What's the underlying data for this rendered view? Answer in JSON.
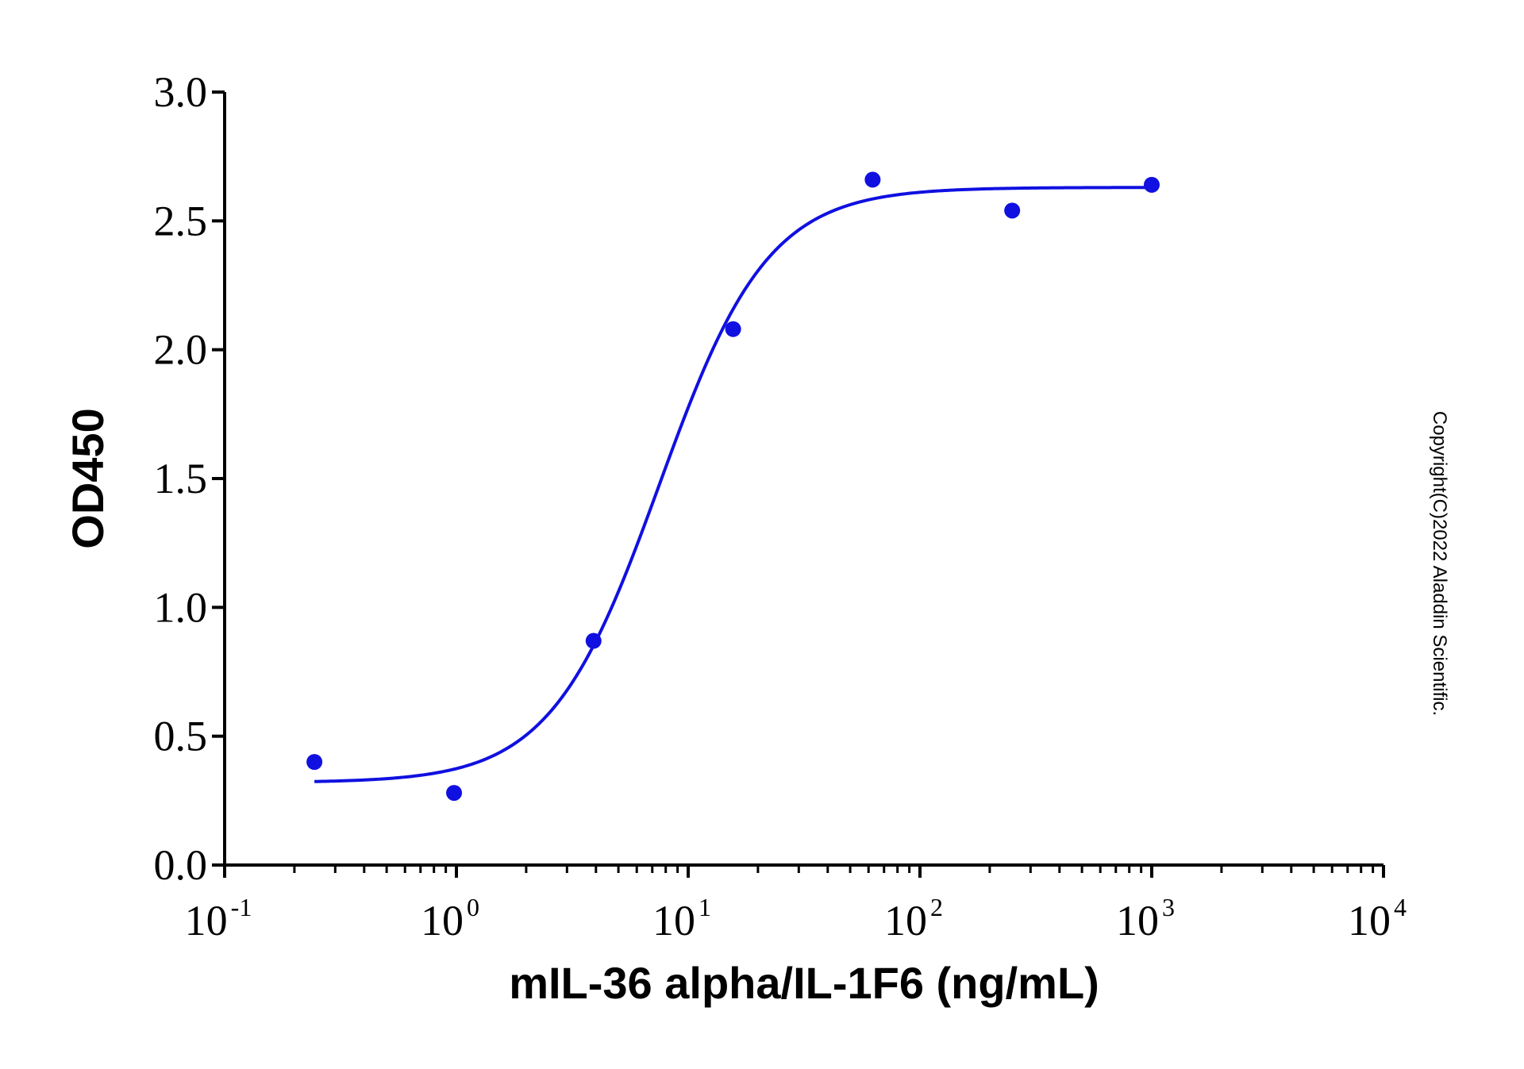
{
  "chart_data": {
    "type": "scatter",
    "xlabel": "mIL-36 alpha/IL-1F6 (ng/mL)",
    "ylabel": "OD450",
    "x_scale": "log",
    "xlim": [
      0.1,
      10000
    ],
    "ylim": [
      0,
      3.0
    ],
    "grid": false,
    "legend": "none",
    "x_ticks": [
      {
        "base": "10",
        "exp": "-1",
        "value": 0.1
      },
      {
        "base": "10",
        "exp": "0",
        "value": 1
      },
      {
        "base": "10",
        "exp": "1",
        "value": 10
      },
      {
        "base": "10",
        "exp": "2",
        "value": 100
      },
      {
        "base": "10",
        "exp": "3",
        "value": 1000
      },
      {
        "base": "10",
        "exp": "4",
        "value": 10000
      }
    ],
    "y_ticks": [
      {
        "label": "0.0",
        "value": 0
      },
      {
        "label": "0.5",
        "value": 0.5
      },
      {
        "label": "1.0",
        "value": 1.0
      },
      {
        "label": "1.5",
        "value": 1.5
      },
      {
        "label": "2.0",
        "value": 2.0
      },
      {
        "label": "2.5",
        "value": 2.5
      },
      {
        "label": "3.0",
        "value": 3.0
      }
    ],
    "series": [
      {
        "points": [
          {
            "x": 0.244,
            "y": 0.4
          },
          {
            "x": 0.977,
            "y": 0.28
          },
          {
            "x": 3.906,
            "y": 0.87
          },
          {
            "x": 15.63,
            "y": 2.08
          },
          {
            "x": 62.5,
            "y": 2.66
          },
          {
            "x": 250,
            "y": 2.54
          },
          {
            "x": 1000,
            "y": 2.64
          }
        ],
        "fit": {
          "model": "4PL",
          "bottom": 0.32,
          "top": 2.63,
          "ec50": 7.5,
          "hill": 1.85
        }
      }
    ],
    "color": "#1010e0",
    "annotation": "Copyright(C)2022 Aladdin Scientific."
  }
}
